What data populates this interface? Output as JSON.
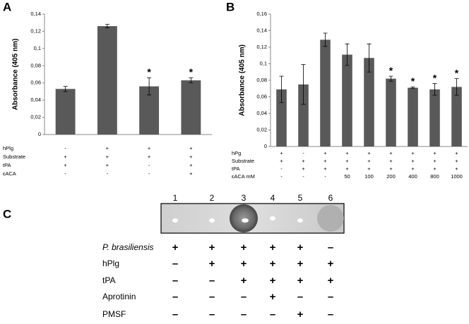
{
  "panel_labels": [
    "A",
    "B",
    "C"
  ],
  "chart_data": [
    {
      "type": "bar",
      "y_label": "Absorbance (405 nm)",
      "color": "#595959",
      "ylim": [
        0,
        0.14
      ],
      "yticks": [
        0,
        {
          "value": 0.02,
          "label": "0,02"
        },
        {
          "value": 0.04,
          "label": "0,04"
        },
        {
          "value": 0.06,
          "label": "0,06"
        },
        {
          "value": 0.08,
          "label": "0,08"
        },
        {
          "value": 0.1,
          "label": "0,1"
        },
        {
          "value": 0.12,
          "label": "0,12"
        },
        {
          "value": 0.14,
          "label": "0,14"
        }
      ],
      "values": [
        0.053,
        0.126,
        0.056,
        0.063
      ],
      "errors": [
        0.003,
        0.002,
        0.01,
        0.003
      ],
      "value_annotations": [
        null,
        null,
        "*",
        "*"
      ],
      "conditions": [
        {
          "name": "hPlg",
          "values": [
            "-",
            "+",
            "+",
            "+"
          ]
        },
        {
          "name": "Substrate",
          "values": [
            "+",
            "+",
            "+",
            "+"
          ]
        },
        {
          "name": "tPA",
          "values": [
            "+",
            "+",
            "-",
            "+"
          ]
        },
        {
          "name": "εACA",
          "values": [
            "-",
            "-",
            "-",
            "+"
          ]
        }
      ]
    },
    {
      "type": "bar",
      "y_label": "Absorbance (405 nm)",
      "color": "#595959",
      "ylim": [
        0,
        0.16
      ],
      "yticks": [
        0,
        {
          "value": 0.02,
          "label": "0,02"
        },
        {
          "value": 0.04,
          "label": "0,04"
        },
        {
          "value": 0.06,
          "label": "0,06"
        },
        {
          "value": 0.08,
          "label": "0,08"
        },
        {
          "value": 0.1,
          "label": "0,1"
        },
        {
          "value": 0.12,
          "label": "0,12"
        },
        {
          "value": 0.14,
          "label": "0,14"
        },
        {
          "value": 0.16,
          "label": "0,16"
        }
      ],
      "values": [
        0.069,
        0.075,
        0.129,
        0.111,
        0.107,
        0.082,
        0.071,
        0.069,
        0.072
      ],
      "errors": [
        0.016,
        0.024,
        0.008,
        0.013,
        0.017,
        0.003,
        0.001,
        0.007,
        0.01
      ],
      "value_annotations": [
        null,
        null,
        null,
        null,
        null,
        "*",
        "*",
        "*",
        "*"
      ],
      "conditions": [
        {
          "name": "hPg",
          "values": [
            "+",
            "-",
            "+",
            "+",
            "+",
            "+",
            "+",
            "+",
            "+"
          ]
        },
        {
          "name": "Substrate",
          "values": [
            "+",
            "+",
            "+",
            "+",
            "+",
            "+",
            "+",
            "+",
            "+"
          ]
        },
        {
          "name": "tPA",
          "values": [
            "-",
            "+",
            "+",
            "+",
            "+",
            "+",
            "+",
            "+",
            "+"
          ]
        },
        {
          "name": "εACA mM",
          "values": [
            "-",
            "-",
            "-",
            "50",
            "100",
            "200",
            "400",
            "800",
            "1000"
          ]
        }
      ]
    }
  ],
  "blot": {
    "lanes": [
      "1",
      "2",
      "3",
      "4",
      "5",
      "6"
    ],
    "rows": [
      {
        "name": "P. brasiliensis",
        "values": [
          "+",
          "+",
          "+",
          "+",
          "+",
          "–"
        ]
      },
      {
        "name": "hPlg",
        "values": [
          "–",
          "+",
          "+",
          "+",
          "+",
          "+"
        ]
      },
      {
        "name": "tPA",
        "values": [
          "–",
          "–",
          "+",
          "+",
          "+",
          "+"
        ]
      },
      {
        "name": "Aprotinin",
        "values": [
          "–",
          "–",
          "–",
          "+",
          "–",
          "–"
        ]
      },
      {
        "name": "PMSF",
        "values": [
          "–",
          "–",
          "–",
          "–",
          "+",
          "–"
        ]
      }
    ]
  }
}
